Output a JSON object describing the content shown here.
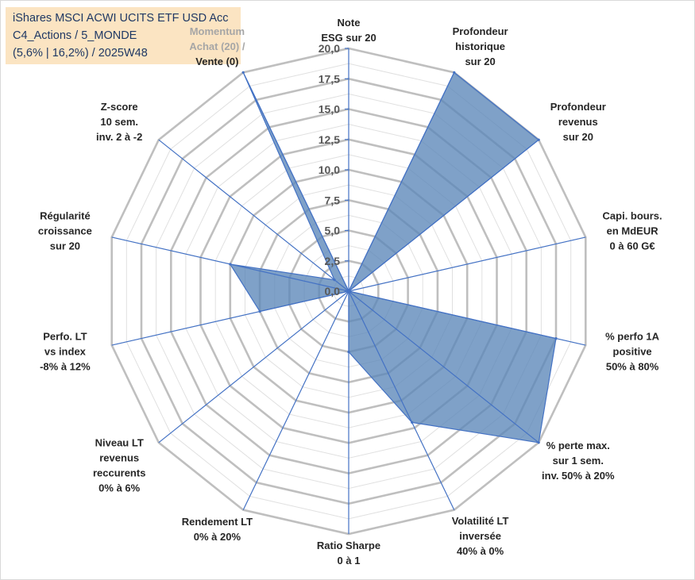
{
  "title": {
    "line1": "iShares MSCI ACWI UCITS ETF USD Acc",
    "line2": "C4_Actions / 5_MONDE",
    "line3": "(5,6% | 16,2%) / 2025W48"
  },
  "colors": {
    "fill": "#5b87b8",
    "stroke": "#4472c4",
    "ring": "#bfbfbf",
    "minor_ring": "#e0e0e0",
    "title_bg": "#fbe4c2",
    "title_text": "#1f3864",
    "momentum_highlight": "#a6a6a6"
  },
  "chart_data": {
    "type": "radar",
    "axes": [
      {
        "lines": [
          "Note",
          "ESG sur 20"
        ]
      },
      {
        "lines": [
          "Profondeur",
          "historique",
          "sur 20"
        ]
      },
      {
        "lines": [
          "Profondeur",
          "revenus",
          "sur 20"
        ]
      },
      {
        "lines": [
          "Capi. bours.",
          "en MdEUR",
          "0 à 60 G€"
        ]
      },
      {
        "lines": [
          "% perfo 1A",
          "positive",
          "50% à 80%"
        ]
      },
      {
        "lines": [
          "% perte max.",
          "sur 1 sem.",
          "inv. 50% à 20%"
        ]
      },
      {
        "lines": [
          "Volatilité LT",
          "inversée",
          "40% à 0%"
        ]
      },
      {
        "lines": [
          "Ratio Sharpe",
          "0 à 1"
        ]
      },
      {
        "lines": [
          "Rendement LT",
          "0% à 20%"
        ]
      },
      {
        "lines": [
          "Niveau LT",
          "revenus",
          "reccurents",
          "0% à 6%"
        ]
      },
      {
        "lines": [
          "Perfo. LT",
          "vs index",
          "-8% à 12%"
        ]
      },
      {
        "lines": [
          "Régularité",
          "croissance",
          "sur 20"
        ]
      },
      {
        "lines": [
          "Z-score",
          "10 sem.",
          "inv. 2 à -2"
        ]
      },
      {
        "lines": [
          "Momentum",
          "Achat (20) /",
          "Vente (0)"
        ],
        "highlight_lines": [
          0,
          1
        ]
      }
    ],
    "values": [
      0,
      20,
      20,
      0,
      17.5,
      20,
      12,
      5,
      0,
      0,
      7.5,
      10,
      1.5,
      20
    ],
    "ylim": [
      0,
      20
    ],
    "ticks": [
      "0,0",
      "2,5",
      "5,0",
      "7,5",
      "10,0",
      "12,5",
      "15,0",
      "17,5",
      "20,0"
    ],
    "grid": true
  }
}
